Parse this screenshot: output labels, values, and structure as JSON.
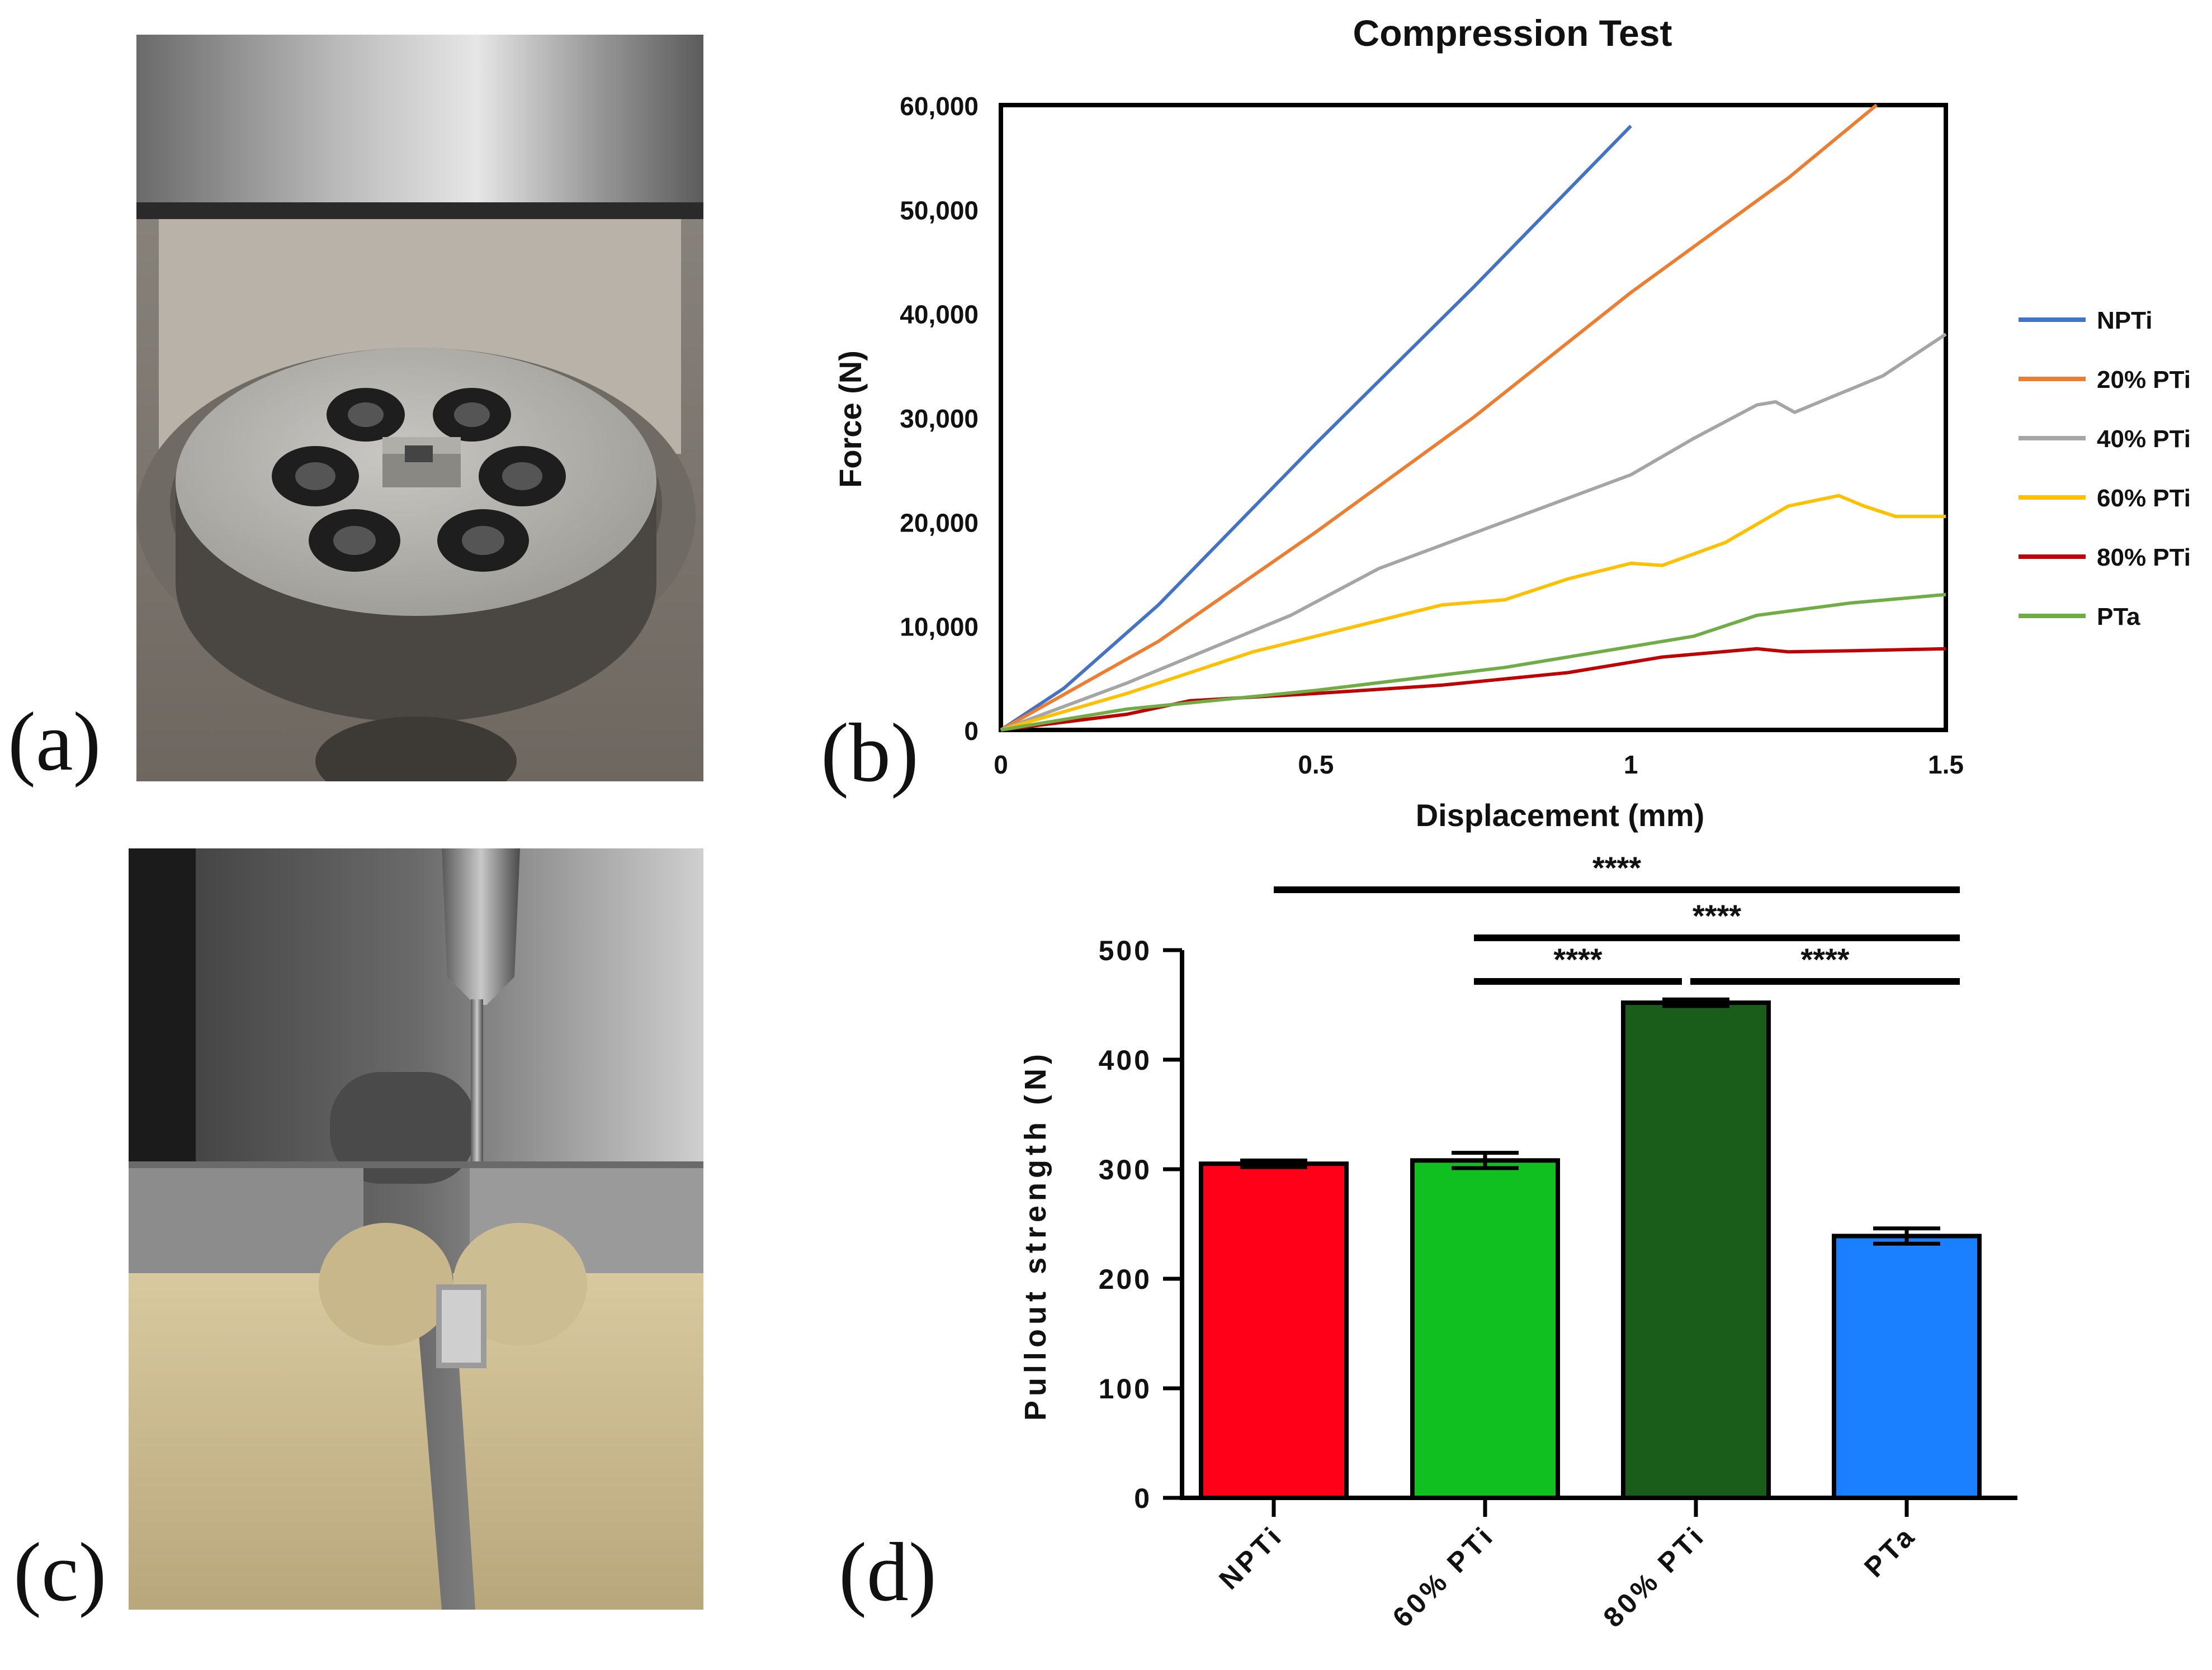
{
  "panels": {
    "a_label": "(a)",
    "b_label": "(b)",
    "c_label": "(c)",
    "d_label": "(d)"
  },
  "photos": {
    "a": "compression-fixture-photo",
    "c": "pullout-fixture-photo"
  },
  "chart_data": [
    {
      "type": "line",
      "title": "Compression Test",
      "xlabel": "Displacement (mm)",
      "ylabel": "Force (N)",
      "xlim": [
        0,
        1.5
      ],
      "ylim": [
        0,
        60000
      ],
      "x_ticks": [
        "0",
        "0.5",
        "1",
        "1.5"
      ],
      "y_ticks": [
        "0",
        "10,000",
        "20,000",
        "30,000",
        "40,000",
        "50,000",
        "60,000"
      ],
      "legend_position": "right",
      "series": [
        {
          "name": "NPTi",
          "color": "#4472c4",
          "points": [
            [
              0,
              0
            ],
            [
              0.1,
              4000
            ],
            [
              0.25,
              12000
            ],
            [
              0.5,
              27500
            ],
            [
              0.75,
              42500
            ],
            [
              1.0,
              58000
            ]
          ]
        },
        {
          "name": "20% PTi",
          "color": "#ed7d31",
          "points": [
            [
              0,
              0
            ],
            [
              0.25,
              8500
            ],
            [
              0.5,
              19000
            ],
            [
              0.75,
              30000
            ],
            [
              1.0,
              42000
            ],
            [
              1.25,
              53000
            ],
            [
              1.39,
              60000
            ]
          ]
        },
        {
          "name": "40% PTi",
          "color": "#a5a5a5",
          "points": [
            [
              0,
              0
            ],
            [
              0.2,
              4500
            ],
            [
              0.44,
              10500
            ],
            [
              0.46,
              11000
            ],
            [
              0.6,
              15500
            ],
            [
              0.8,
              20000
            ],
            [
              1.0,
              24500
            ],
            [
              1.1,
              28000
            ],
            [
              1.2,
              31200
            ],
            [
              1.23,
              31500
            ],
            [
              1.26,
              30500
            ],
            [
              1.3,
              31500
            ],
            [
              1.4,
              34000
            ],
            [
              1.5,
              38000
            ]
          ]
        },
        {
          "name": "60% PTi",
          "color": "#ffc000",
          "points": [
            [
              0,
              0
            ],
            [
              0.2,
              3500
            ],
            [
              0.4,
              7500
            ],
            [
              0.6,
              10500
            ],
            [
              0.7,
              12000
            ],
            [
              0.8,
              12500
            ],
            [
              0.9,
              14500
            ],
            [
              1.0,
              16000
            ],
            [
              1.05,
              15800
            ],
            [
              1.15,
              18000
            ],
            [
              1.25,
              21500
            ],
            [
              1.33,
              22500
            ],
            [
              1.37,
              21500
            ],
            [
              1.42,
              20500
            ],
            [
              1.5,
              20500
            ]
          ]
        },
        {
          "name": "80% PTi",
          "color": "#c00000",
          "points": [
            [
              0,
              0
            ],
            [
              0.2,
              1500
            ],
            [
              0.3,
              2800
            ],
            [
              0.5,
              3500
            ],
            [
              0.7,
              4300
            ],
            [
              0.9,
              5500
            ],
            [
              1.05,
              7000
            ],
            [
              1.2,
              7800
            ],
            [
              1.25,
              7500
            ],
            [
              1.35,
              7600
            ],
            [
              1.5,
              7800
            ]
          ]
        },
        {
          "name": "PTa",
          "color": "#70ad47",
          "points": [
            [
              0,
              0
            ],
            [
              0.2,
              2000
            ],
            [
              0.5,
              3800
            ],
            [
              0.8,
              6000
            ],
            [
              0.9,
              7000
            ],
            [
              1.1,
              9000
            ],
            [
              1.2,
              11000
            ],
            [
              1.35,
              12200
            ],
            [
              1.5,
              13000
            ]
          ]
        }
      ]
    },
    {
      "type": "bar",
      "title": "",
      "xlabel": "",
      "ylabel": "Pullout strength (N)",
      "ylim": [
        0,
        500
      ],
      "y_ticks": [
        "0",
        "100",
        "200",
        "300",
        "400",
        "500"
      ],
      "categories": [
        "NPTi",
        "60% PTi",
        "80% PTi",
        "PTa"
      ],
      "values": [
        305,
        308,
        452,
        239
      ],
      "errors": [
        3,
        7,
        3,
        7
      ],
      "colors": [
        "#ff0018",
        "#10c020",
        "#1a5c1a",
        "#1a80ff"
      ],
      "significance": [
        {
          "from": 0,
          "to": 3,
          "label": "****"
        },
        {
          "from": 1,
          "to": 3,
          "label": "****"
        },
        {
          "from": 1,
          "to": 2,
          "label": "****"
        },
        {
          "from": 2,
          "to": 3,
          "label": "****"
        }
      ]
    }
  ]
}
